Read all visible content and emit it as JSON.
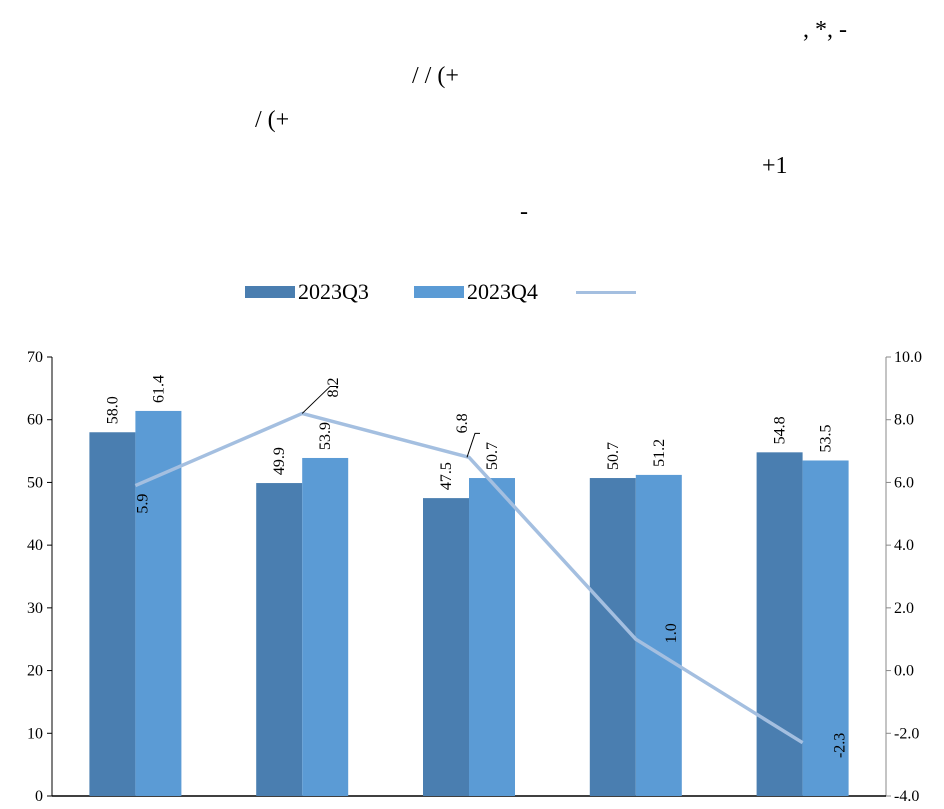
{
  "page_glyphs": [
    ", *, -",
    "/ / (+",
    "/ (+",
    "+1",
    "-"
  ],
  "chart_data": {
    "type": "bar",
    "categories": [
      "",
      "",
      "",
      "",
      ""
    ],
    "series": [
      {
        "name": "2023Q3",
        "values": [
          58.0,
          49.9,
          47.5,
          50.7,
          54.8
        ],
        "color": "#4a7eb0"
      },
      {
        "name": "2023Q4",
        "values": [
          61.4,
          53.9,
          50.7,
          51.2,
          53.5
        ],
        "color": "#5b9bd5"
      }
    ],
    "line_series": {
      "name": "",
      "values": [
        5.9,
        8.2,
        6.8,
        1.0,
        -2.3
      ],
      "color": "#a4bfe0",
      "axis": "right"
    },
    "y_left": {
      "min": 0,
      "max": 70,
      "ticks": [
        "0",
        "10",
        "20",
        "30",
        "40",
        "50",
        "60",
        "70"
      ]
    },
    "y_right": {
      "min": -4,
      "max": 10,
      "ticks": [
        "-4.0",
        "-2.0",
        "0.0",
        "2.0",
        "4.0",
        "6.0",
        "8.0",
        "10.0"
      ]
    },
    "bar_labels": [
      [
        "58.0",
        "49.9",
        "47.5",
        "50.7",
        "54.8"
      ],
      [
        "61.4",
        "53.9",
        "50.7",
        "51.2",
        "53.5"
      ]
    ],
    "line_labels": [
      "5.9",
      "8.2",
      "6.8",
      "1.0",
      "-2.3"
    ],
    "legend": "top-center",
    "grid": false
  }
}
